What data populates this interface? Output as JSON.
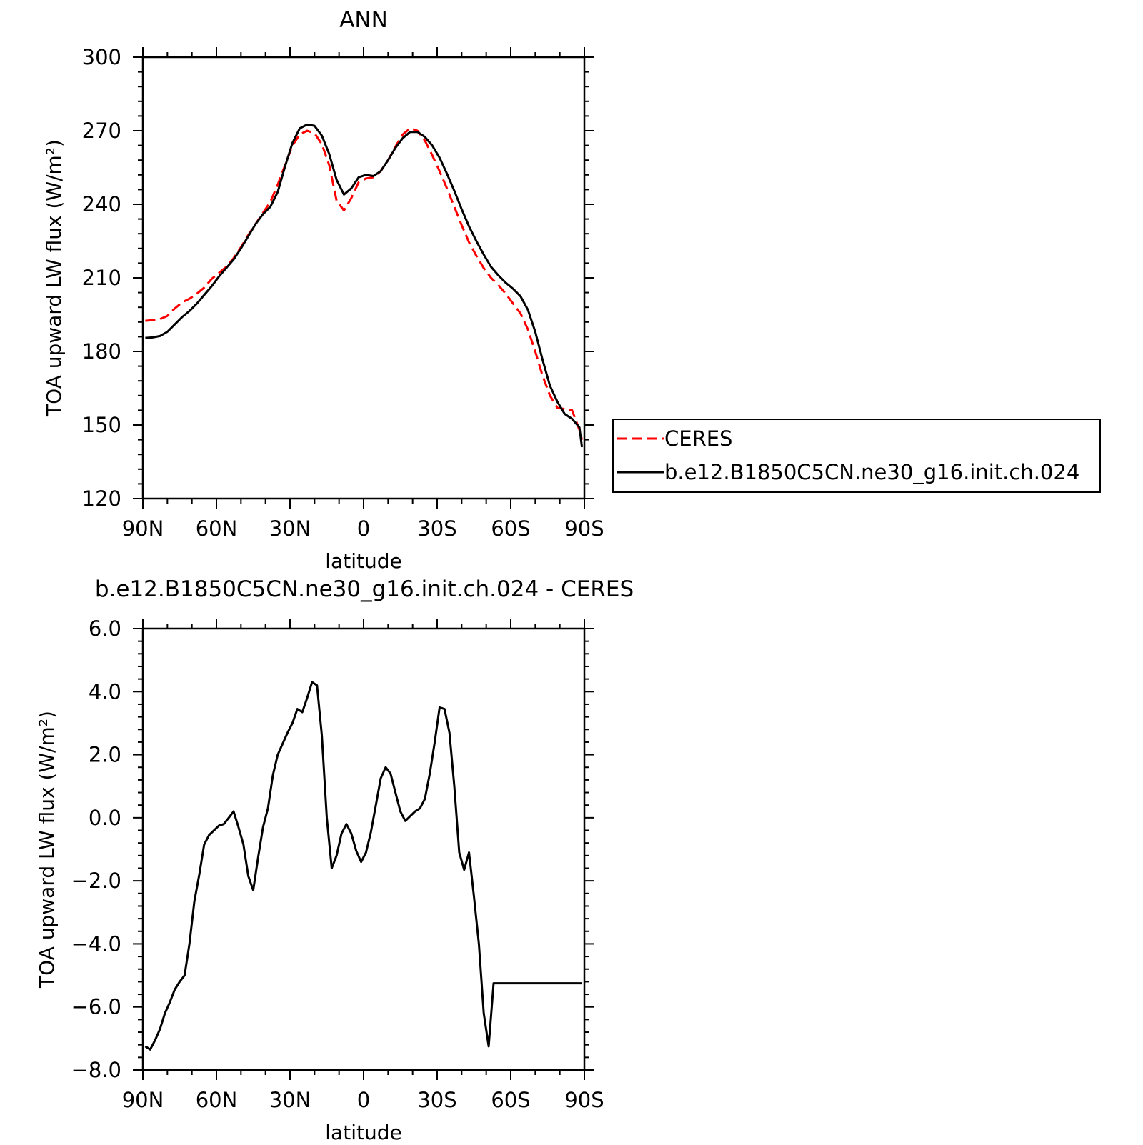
{
  "chart_data": [
    {
      "type": "line",
      "title": "ANN",
      "xlabel": "latitude",
      "ylabel": "TOA upward LW flux (W/m²)",
      "xlim": [
        90,
        -90
      ],
      "ylim": [
        120,
        300
      ],
      "x_ticks": [
        {
          "value": 90,
          "label": "90N"
        },
        {
          "value": 60,
          "label": "60N"
        },
        {
          "value": 30,
          "label": "30N"
        },
        {
          "value": 0,
          "label": "0"
        },
        {
          "value": -30,
          "label": "30S"
        },
        {
          "value": -60,
          "label": "60S"
        },
        {
          "value": -90,
          "label": "90S"
        }
      ],
      "y_ticks": [
        {
          "value": 120,
          "label": "120"
        },
        {
          "value": 150,
          "label": "150"
        },
        {
          "value": 180,
          "label": "180"
        },
        {
          "value": 210,
          "label": "210"
        },
        {
          "value": 240,
          "label": "240"
        },
        {
          "value": 270,
          "label": "270"
        },
        {
          "value": 300,
          "label": "300"
        }
      ],
      "legend_position": "right",
      "series": [
        {
          "name": "CERES",
          "color": "#ff0000",
          "dash": "dashed",
          "x": [
            89,
            86,
            83,
            80,
            77,
            74,
            71,
            68,
            65,
            62,
            59,
            56,
            53,
            50,
            47,
            44,
            41,
            38,
            35,
            32,
            29,
            26,
            23,
            20,
            17,
            14,
            11,
            8,
            5,
            2,
            -1,
            -4,
            -7,
            -10,
            -13,
            -16,
            -19,
            -22,
            -25,
            -28,
            -31,
            -34,
            -37,
            -40,
            -43,
            -46,
            -49,
            -52,
            -55,
            -58,
            -61,
            -64,
            -67,
            -70,
            -73,
            -76,
            -79,
            -82,
            -85,
            -88,
            -89
          ],
          "y": [
            192.5,
            192.8,
            193.2,
            194.5,
            197.5,
            200.0,
            201.5,
            203.5,
            206.0,
            209.5,
            212.0,
            214.5,
            218.0,
            222.5,
            227.5,
            232.0,
            236.5,
            241.0,
            248.0,
            256.0,
            264.0,
            268.5,
            270.0,
            269.0,
            264.5,
            256.0,
            241.5,
            237.5,
            242.5,
            249.0,
            250.5,
            251.0,
            253.5,
            258.0,
            263.5,
            268.5,
            271.0,
            270.0,
            266.0,
            260.0,
            253.5,
            246.5,
            239.0,
            231.5,
            224.5,
            219.0,
            214.0,
            210.0,
            207.0,
            203.5,
            199.5,
            195.5,
            189.0,
            180.0,
            170.0,
            162.0,
            157.0,
            156.5,
            156.0,
            148.0,
            144.0
          ]
        },
        {
          "name": "b.e12.B1850C5CN.ne30_g16.init.ch.024",
          "color": "#000000",
          "dash": "solid",
          "x": [
            89,
            86,
            83,
            80,
            77,
            74,
            71,
            68,
            65,
            62,
            59,
            56,
            53,
            50,
            47,
            44,
            41,
            38,
            35,
            32,
            29,
            26,
            23,
            20,
            17,
            14,
            11,
            8,
            5,
            2,
            -1,
            -4,
            -7,
            -10,
            -13,
            -16,
            -19,
            -22,
            -25,
            -28,
            -31,
            -34,
            -37,
            -40,
            -43,
            -46,
            -49,
            -52,
            -55,
            -58,
            -61,
            -64,
            -67,
            -70,
            -73,
            -76,
            -79,
            -82,
            -85,
            -88,
            -89
          ],
          "y": [
            185.5,
            185.7,
            186.3,
            188.0,
            191.0,
            194.0,
            196.5,
            199.5,
            203.0,
            206.5,
            210.5,
            214.0,
            217.5,
            222.0,
            227.0,
            232.0,
            236.0,
            239.0,
            245.0,
            255.5,
            265.0,
            271.0,
            272.5,
            272.0,
            268.0,
            260.5,
            250.0,
            244.0,
            246.5,
            251.0,
            252.0,
            251.5,
            253.5,
            258.0,
            263.0,
            267.0,
            269.5,
            269.5,
            267.5,
            264.0,
            259.0,
            252.5,
            245.5,
            238.0,
            231.0,
            225.0,
            219.5,
            214.5,
            211.0,
            208.0,
            205.5,
            202.5,
            197.0,
            188.0,
            176.5,
            166.0,
            159.5,
            154.5,
            152.5,
            149.0,
            141.0
          ]
        }
      ]
    },
    {
      "type": "line",
      "title": "b.e12.B1850C5CN.ne30_g16.init.ch.024 - CERES",
      "xlabel": "latitude",
      "ylabel": "TOA upward LW flux (W/m²)",
      "xlim": [
        90,
        -90
      ],
      "ylim": [
        -8.0,
        6.0
      ],
      "x_ticks": [
        {
          "value": 90,
          "label": "90N"
        },
        {
          "value": 60,
          "label": "60N"
        },
        {
          "value": 30,
          "label": "30N"
        },
        {
          "value": 0,
          "label": "0"
        },
        {
          "value": -30,
          "label": "30S"
        },
        {
          "value": -60,
          "label": "60S"
        },
        {
          "value": -90,
          "label": "90S"
        }
      ],
      "y_ticks": [
        {
          "value": -8.0,
          "label": "-8.0"
        },
        {
          "value": -6.0,
          "label": "-6.0"
        },
        {
          "value": -4.0,
          "label": "-4.0"
        },
        {
          "value": -2.0,
          "label": "-2.0"
        },
        {
          "value": 0.0,
          "label": "0.0"
        },
        {
          "value": 2.0,
          "label": "2.0"
        },
        {
          "value": 4.0,
          "label": "4.0"
        },
        {
          "value": 6.0,
          "label": "6.0"
        }
      ],
      "series": [
        {
          "color": "#000000",
          "dash": "solid",
          "x": [
            89,
            87,
            85,
            83,
            81,
            79,
            77,
            75,
            73,
            71,
            69,
            67,
            65,
            63,
            61,
            59,
            57,
            55,
            53,
            51,
            49,
            47,
            45,
            43,
            41,
            39,
            37,
            35,
            33,
            31,
            29,
            27,
            25,
            23,
            21,
            19,
            17,
            15,
            13,
            11,
            9,
            7,
            5,
            3,
            1,
            -1,
            -3,
            -5,
            -7,
            -9,
            -11,
            -13,
            -15,
            -17,
            -19,
            -21,
            -23,
            -25,
            -27,
            -29,
            -31,
            -33,
            -35,
            -37,
            -39,
            -41,
            -43,
            -45,
            -47,
            -49,
            -51,
            -53,
            -55,
            -57,
            -59,
            -61,
            -63,
            -65,
            -67,
            -69,
            -71,
            -73,
            -75,
            -77,
            -79,
            -81,
            -83,
            -85,
            -87,
            -89
          ],
          "y": [
            -7.25,
            -7.35,
            -7.05,
            -6.7,
            -6.2,
            -5.85,
            -5.45,
            -5.2,
            -5.0,
            -4.0,
            -2.65,
            -1.8,
            -0.85,
            -0.55,
            -0.4,
            -0.25,
            -0.2,
            0.0,
            0.2,
            -0.3,
            -0.85,
            -1.85,
            -2.3,
            -1.25,
            -0.3,
            0.3,
            1.35,
            2.0,
            2.35,
            2.7,
            3.0,
            3.45,
            3.35,
            3.8,
            4.3,
            4.2,
            2.6,
            0.0,
            -1.6,
            -1.2,
            -0.5,
            -0.2,
            -0.5,
            -1.05,
            -1.4,
            -1.1,
            -0.45,
            0.4,
            1.25,
            1.6,
            1.4,
            0.8,
            0.2,
            -0.1,
            0.05,
            0.2,
            0.3,
            0.6,
            1.4,
            2.4,
            3.5,
            3.45,
            2.7,
            1.0,
            -1.1,
            -1.65,
            -1.1,
            -2.5,
            -4.0,
            -6.2,
            -7.25,
            -5.25,
            -5.25,
            -5.25,
            -5.25,
            -5.25,
            -5.25,
            -5.25,
            -5.25,
            -5.25,
            -5.25,
            -5.25,
            -5.25,
            -5.25,
            -5.25,
            -5.25,
            -5.25,
            -5.25,
            -5.25,
            -5.25
          ]
        }
      ]
    }
  ]
}
